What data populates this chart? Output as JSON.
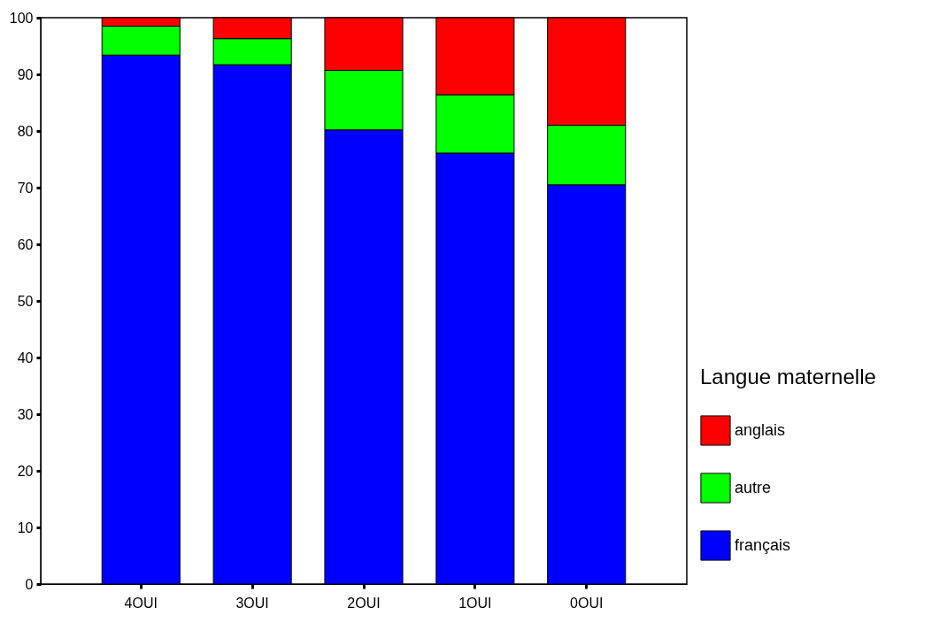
{
  "chart_data": {
    "type": "bar",
    "stacked": true,
    "legend_title": "Langue maternelle",
    "legend": "right",
    "grid": false,
    "categories": [
      "4OUI",
      "3OUI",
      "2OUI",
      "1OUI",
      "0OUI"
    ],
    "ylim": [
      0,
      100
    ],
    "yticks": [
      0,
      10,
      20,
      30,
      40,
      50,
      60,
      70,
      80,
      90,
      100
    ],
    "series": [
      {
        "name": "français",
        "color": "#0000ff",
        "values": [
          93.4,
          91.7,
          80.2,
          76.1,
          70.5
        ]
      },
      {
        "name": "autre",
        "color": "#00ff00",
        "values": [
          5.1,
          4.6,
          10.5,
          10.3,
          10.5
        ]
      },
      {
        "name": "anglais",
        "color": "#ff0000",
        "values": [
          1.5,
          3.7,
          9.3,
          13.6,
          19.0
        ]
      }
    ]
  }
}
